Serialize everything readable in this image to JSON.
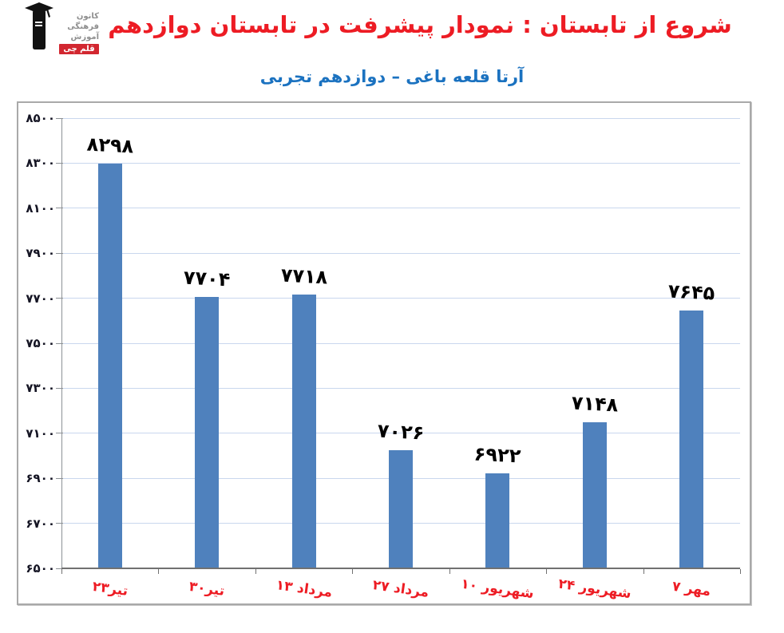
{
  "header": {
    "title": "شروع از تابستان : نمودار پیشرفت در تابستان دوازدهم",
    "subtitle": "آرتا قلعه باغی – دوازدهم تجربی",
    "title_color": "#ed1c24",
    "subtitle_color": "#1b72c0"
  },
  "logo": {
    "lines": [
      "کانون",
      "فرهنگی",
      "آموزش"
    ],
    "badge": "قلم چی",
    "badge_color": "#d22730"
  },
  "chart_data": {
    "type": "bar",
    "title": "شروع از تابستان : نمودار پیشرفت در تابستان دوازدهم",
    "subtitle": "آرتا قلعه باغی – دوازدهم تجربی",
    "categories": [
      "۲۳تیر",
      "۳۰تیر",
      "۱۳ مرداد",
      "۲۷ مرداد",
      "۱۰ شهریور",
      "۲۴ شهریور",
      "۷ مهر"
    ],
    "categories_latin": [
      "23 Tir",
      "30 Tir",
      "13 Mordad",
      "27 Mordad",
      "10 Shahrivar",
      "24 Shahrivar",
      "7 Mehr"
    ],
    "values": [
      8298,
      7704,
      7718,
      7026,
      6922,
      7148,
      7645
    ],
    "value_labels": [
      "۸۲۹۸",
      "۷۷۰۴",
      "۷۷۱۸",
      "۷۰۲۶",
      "۶۹۲۲",
      "۷۱۴۸",
      "۷۶۴۵"
    ],
    "y_ticks": [
      6500,
      6700,
      6900,
      7100,
      7300,
      7500,
      7700,
      7900,
      8100,
      8300,
      8500
    ],
    "y_tick_labels": [
      "۶۵۰۰",
      "۶۷۰۰",
      "۶۹۰۰",
      "۷۱۰۰",
      "۷۳۰۰",
      "۷۵۰۰",
      "۷۷۰۰",
      "۷۹۰۰",
      "۸۱۰۰",
      "۸۳۰۰",
      "۸۵۰۰"
    ],
    "ylim": [
      6500,
      8500
    ],
    "xlabel": "",
    "ylabel": "",
    "grid": true,
    "legend": false,
    "bar_color": "#4f81bd",
    "grid_color": "#c9d7ee",
    "x_label_color": "#ed1c24"
  }
}
